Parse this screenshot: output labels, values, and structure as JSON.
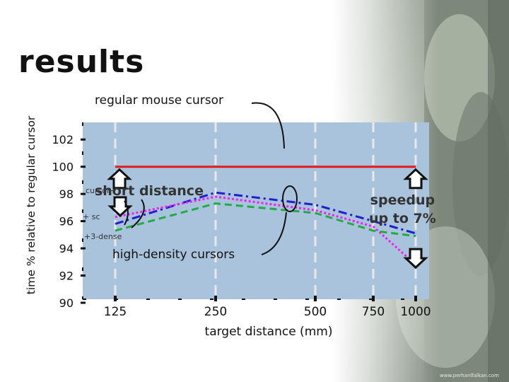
{
  "page": {
    "title": "results",
    "watermark": "www.perhanlfalkan.com"
  },
  "chart_data": {
    "type": "line",
    "title": "",
    "xlabel": "target distance (mm)",
    "ylabel": "time % relative to regular cursor",
    "x_categories": [
      "125",
      "250",
      "500",
      "750",
      "1000"
    ],
    "yticks": [
      90,
      92,
      94,
      96,
      98,
      100,
      102
    ],
    "ylim": [
      90,
      103
    ],
    "grid": "vertical dashed at x ticks",
    "series": [
      {
        "name": "",
        "color": "#e31a1c",
        "style": "solid",
        "values": [
          100,
          100,
          100,
          100,
          100
        ]
      },
      {
        "name": "",
        "color": "#1f1fcc",
        "style": "dash-dot",
        "values": [
          95.8,
          98.1,
          97.2,
          96.0,
          95.1
        ]
      },
      {
        "name": "",
        "color": "#ee22ee",
        "style": "dotted",
        "values": [
          96.3,
          97.8,
          96.8,
          95.6,
          92.8
        ]
      },
      {
        "name": "",
        "color": "#22aa44",
        "style": "dashed",
        "values": [
          95.3,
          97.3,
          96.6,
          95.3,
          94.9
        ]
      }
    ],
    "annotations": {
      "regular": "regular mouse cursor",
      "short": "short distance",
      "high": "high-density cursors",
      "speedup_line1": "speedup",
      "speedup_line2": "up to 7%",
      "label_cs": "cursor+",
      "label_sc": "+ sc",
      "label_3d": "+3-dense"
    }
  }
}
